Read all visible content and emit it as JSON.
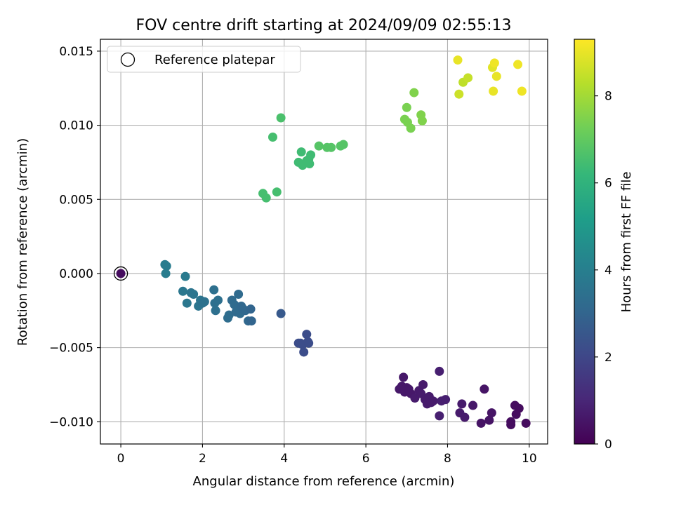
{
  "chart_data": {
    "type": "scatter",
    "title": "FOV centre drift starting at 2024/09/09 02:55:13",
    "xlabel": "Angular distance from reference (arcmin)",
    "ylabel": "Rotation from reference (arcmin)",
    "xlim": [
      -0.5,
      10.45
    ],
    "ylim": [
      -0.0115,
      0.0158
    ],
    "xticks": [
      0,
      2,
      4,
      6,
      8,
      10
    ],
    "xtick_labels": [
      "0",
      "2",
      "4",
      "6",
      "8",
      "10"
    ],
    "yticks": [
      -0.01,
      -0.005,
      0.0,
      0.005,
      0.01,
      0.015
    ],
    "ytick_labels": [
      "−0.010",
      "−0.005",
      "0.000",
      "0.005",
      "0.010",
      "0.015"
    ],
    "grid": true,
    "legend": {
      "placement": "upper-left",
      "entries": [
        "Reference platepar"
      ]
    },
    "reference_point": {
      "x": 0,
      "y": 0,
      "hours": 0.3
    },
    "colorbar": {
      "label": "Hours from first FF file",
      "colormap": "viridis",
      "range": [
        0,
        9.3
      ],
      "ticks": [
        0,
        2,
        4,
        6,
        8
      ],
      "tick_labels": [
        "0",
        "2",
        "4",
        "6",
        "8"
      ]
    },
    "colors": {
      "viridis_stops": [
        "#440154",
        "#482878",
        "#3e4989",
        "#31688e",
        "#26828e",
        "#1f9e89",
        "#35b779",
        "#6ece58",
        "#b5de2b",
        "#fde725"
      ],
      "reference_edge": "#000000",
      "grid": "#b0b0b0"
    },
    "series": [
      {
        "x_y_hours": [
          [
            6.82,
            -0.0078,
            0.6
          ],
          [
            6.88,
            -0.0076,
            0.6
          ],
          [
            6.92,
            -0.007,
            0.6
          ],
          [
            6.95,
            -0.008,
            0.6
          ],
          [
            7.0,
            -0.0077,
            0.6
          ],
          [
            7.05,
            -0.0078,
            0.6
          ],
          [
            7.1,
            -0.0081,
            0.6
          ],
          [
            7.2,
            -0.0084,
            0.7
          ],
          [
            7.3,
            -0.0079,
            0.7
          ],
          [
            7.35,
            -0.0081,
            0.7
          ],
          [
            7.4,
            -0.0075,
            0.7
          ],
          [
            7.45,
            -0.0085,
            0.7
          ],
          [
            7.5,
            -0.0088,
            0.7
          ],
          [
            7.55,
            -0.0083,
            0.7
          ],
          [
            7.6,
            -0.0087,
            0.7
          ],
          [
            7.65,
            -0.0086,
            0.7
          ],
          [
            7.8,
            -0.0066,
            0.8
          ],
          [
            7.8,
            -0.0096,
            0.8
          ],
          [
            7.85,
            -0.0086,
            0.8
          ],
          [
            7.95,
            -0.0085,
            0.8
          ],
          [
            8.3,
            -0.0094,
            0.7
          ],
          [
            8.35,
            -0.0088,
            0.7
          ],
          [
            8.42,
            -0.0097,
            0.7
          ],
          [
            8.62,
            -0.0089,
            0.6
          ],
          [
            8.82,
            -0.0101,
            0.5
          ],
          [
            8.9,
            -0.0078,
            0.5
          ],
          [
            9.02,
            -0.0099,
            0.5
          ],
          [
            9.08,
            -0.0094,
            0.5
          ],
          [
            9.55,
            -0.01,
            0.3
          ],
          [
            9.55,
            -0.0102,
            0.3
          ],
          [
            9.65,
            -0.0089,
            0.3
          ],
          [
            9.68,
            -0.0095,
            0.3
          ],
          [
            9.75,
            -0.0091,
            0.3
          ],
          [
            9.92,
            -0.0101,
            0.3
          ]
        ]
      },
      {
        "x_y_hours": [
          [
            3.92,
            -0.0027,
            2.6
          ],
          [
            4.35,
            -0.0047,
            2.2
          ],
          [
            4.4,
            -0.0047,
            2.2
          ],
          [
            4.45,
            -0.0048,
            2.2
          ],
          [
            4.48,
            -0.0053,
            2.2
          ],
          [
            4.55,
            -0.0041,
            2.2
          ],
          [
            4.58,
            -0.0046,
            2.2
          ],
          [
            4.6,
            -0.0047,
            2.2
          ]
        ]
      },
      {
        "x_y_hours": [
          [
            1.08,
            0.0006,
            3.9
          ],
          [
            1.12,
            0.0005,
            3.9
          ],
          [
            1.1,
            0.0,
            3.9
          ],
          [
            1.58,
            -0.0002,
            3.8
          ],
          [
            1.52,
            -0.0012,
            3.7
          ],
          [
            1.62,
            -0.002,
            3.7
          ],
          [
            1.72,
            -0.0013,
            3.6
          ],
          [
            1.78,
            -0.0014,
            3.6
          ],
          [
            1.9,
            -0.0022,
            3.6
          ],
          [
            1.95,
            -0.0018,
            3.6
          ],
          [
            2.0,
            -0.002,
            3.5
          ],
          [
            2.05,
            -0.0019,
            3.5
          ],
          [
            2.28,
            -0.0011,
            3.4
          ],
          [
            2.3,
            -0.002,
            3.4
          ],
          [
            2.32,
            -0.0025,
            3.4
          ],
          [
            2.38,
            -0.0018,
            3.4
          ],
          [
            2.62,
            -0.003,
            3.3
          ],
          [
            2.65,
            -0.0028,
            3.3
          ],
          [
            2.72,
            -0.0018,
            3.2
          ],
          [
            2.78,
            -0.0021,
            3.2
          ],
          [
            2.82,
            -0.0026,
            3.2
          ],
          [
            2.88,
            -0.0014,
            3.2
          ],
          [
            2.92,
            -0.0027,
            3.2
          ],
          [
            2.95,
            -0.0022,
            3.1
          ],
          [
            3.0,
            -0.0024,
            3.1
          ],
          [
            3.05,
            -0.0025,
            3.1
          ],
          [
            3.12,
            -0.0032,
            3.1
          ],
          [
            3.18,
            -0.0024,
            3.0
          ],
          [
            3.2,
            -0.0032,
            3.0
          ]
        ]
      },
      {
        "x_y_hours": [
          [
            3.48,
            0.0054,
            6.5
          ],
          [
            3.56,
            0.0051,
            6.5
          ],
          [
            3.72,
            0.0092,
            6.5
          ],
          [
            3.82,
            0.0055,
            6.5
          ],
          [
            3.92,
            0.0105,
            6.6
          ],
          [
            4.35,
            0.0075,
            6.4
          ],
          [
            4.42,
            0.0082,
            6.4
          ],
          [
            4.45,
            0.0073,
            6.4
          ],
          [
            4.55,
            0.0076,
            6.4
          ],
          [
            4.6,
            0.0077,
            6.4
          ],
          [
            4.62,
            0.0074,
            6.4
          ],
          [
            4.65,
            0.008,
            6.4
          ],
          [
            4.85,
            0.0086,
            6.8
          ],
          [
            5.05,
            0.0085,
            6.8
          ],
          [
            5.15,
            0.0085,
            6.8
          ],
          [
            5.38,
            0.0086,
            6.8
          ],
          [
            5.45,
            0.0087,
            6.8
          ]
        ]
      },
      {
        "x_y_hours": [
          [
            6.95,
            0.0104,
            7.4
          ],
          [
            7.0,
            0.0112,
            7.4
          ],
          [
            7.02,
            0.0102,
            7.4
          ],
          [
            7.1,
            0.0098,
            7.4
          ],
          [
            7.18,
            0.0122,
            7.5
          ],
          [
            7.35,
            0.0107,
            7.5
          ],
          [
            7.38,
            0.0103,
            7.5
          ]
        ]
      },
      {
        "x_y_hours": [
          [
            8.25,
            0.0144,
            9.0
          ],
          [
            8.28,
            0.0121,
            8.6
          ],
          [
            8.38,
            0.0129,
            8.4
          ],
          [
            8.5,
            0.0132,
            8.5
          ],
          [
            9.1,
            0.0139,
            8.9
          ],
          [
            9.12,
            0.0123,
            9.0
          ],
          [
            9.15,
            0.0142,
            9.1
          ],
          [
            9.2,
            0.0133,
            9.0
          ],
          [
            9.72,
            0.0141,
            9.1
          ],
          [
            9.82,
            0.0123,
            9.1
          ]
        ]
      }
    ]
  }
}
